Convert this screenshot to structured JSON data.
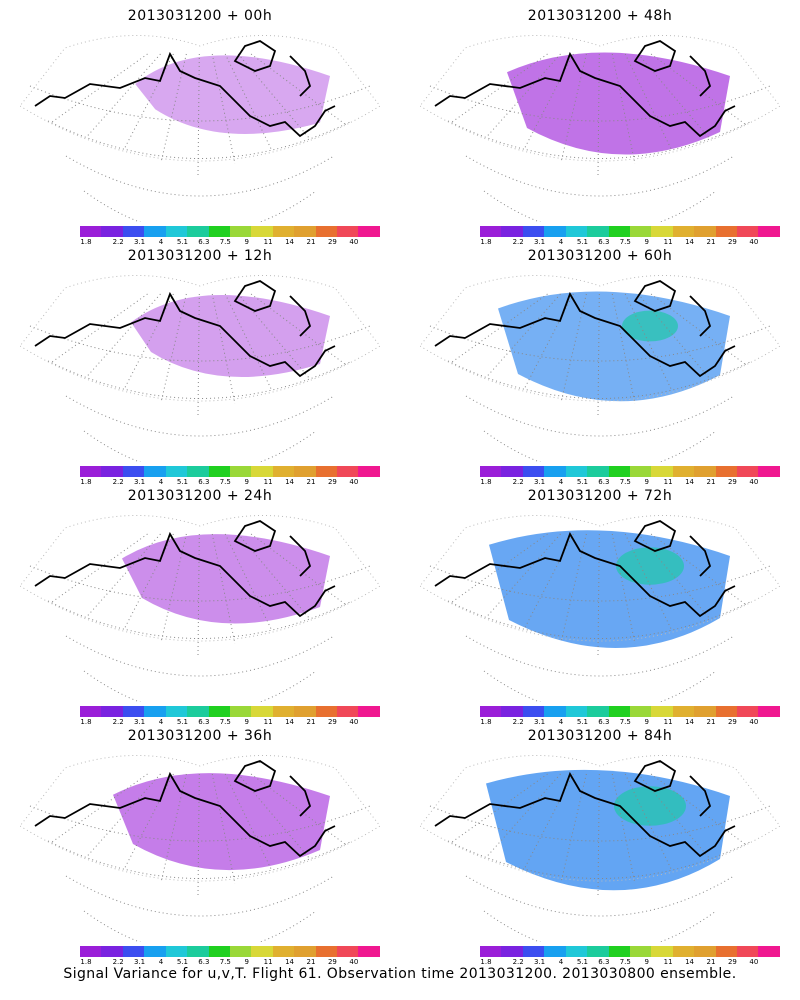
{
  "panels": [
    {
      "title": "2013031200 + 00h",
      "coverage": 0.08
    },
    {
      "title": "2013031200 + 48h",
      "coverage": 0.55
    },
    {
      "title": "2013031200 + 12h",
      "coverage": 0.15
    },
    {
      "title": "2013031200 + 60h",
      "coverage": 0.7
    },
    {
      "title": "2013031200 + 24h",
      "coverage": 0.3
    },
    {
      "title": "2013031200 + 72h",
      "coverage": 0.85
    },
    {
      "title": "2013031200 + 36h",
      "coverage": 0.45
    },
    {
      "title": "2013031200 + 84h",
      "coverage": 0.9
    }
  ],
  "colorbar": {
    "colors": [
      "#9a1ed8",
      "#7a22e0",
      "#3c4ef0",
      "#18a0f0",
      "#20c8d8",
      "#1ccc9c",
      "#20d020",
      "#9ad838",
      "#d8d838",
      "#e0b030",
      "#e0a030",
      "#e87030",
      "#f04858",
      "#f01890"
    ],
    "labels": [
      "1.8",
      "2.2",
      "3.1",
      "4",
      "5.1",
      "6.3",
      "7.5",
      "9",
      "11",
      "14",
      "21",
      "29",
      "40"
    ]
  },
  "footer": "Signal Variance for u,v,T. Flight 61. Observation time 2013031200. 2013030800 ensemble."
}
